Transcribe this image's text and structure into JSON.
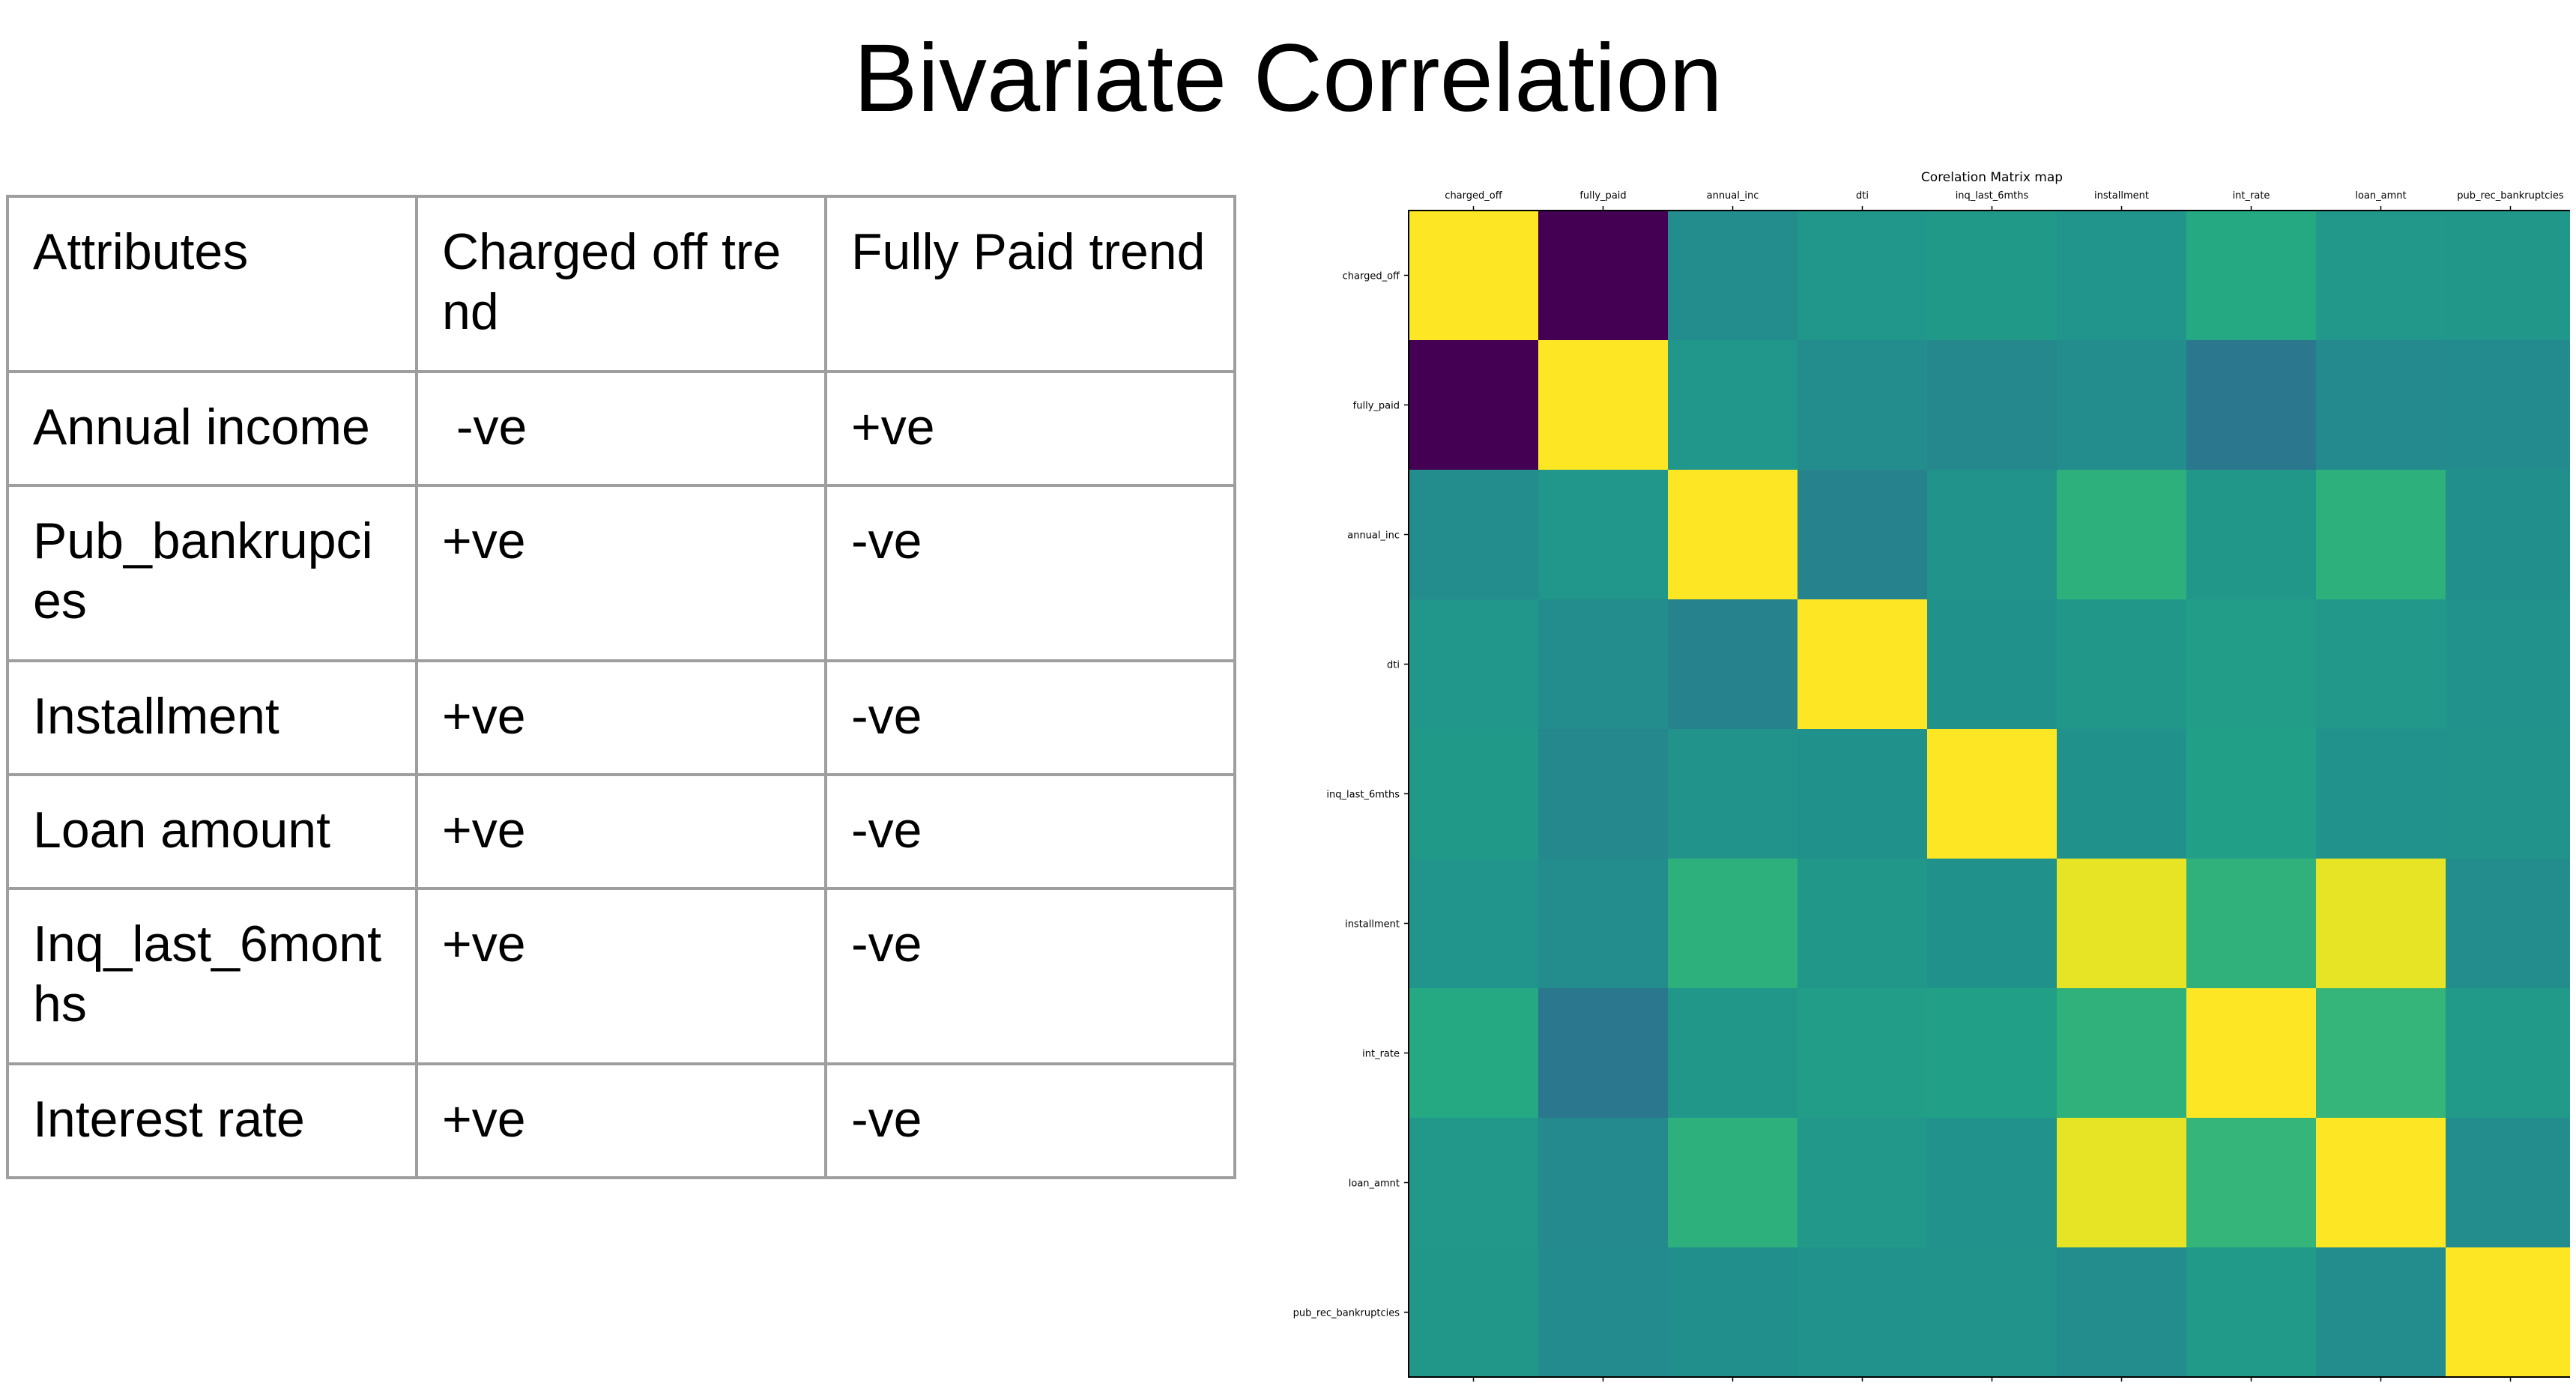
{
  "slide": {
    "title": "Bivariate Correlation"
  },
  "table": {
    "headers": [
      "Attributes",
      "Charged off trend",
      "Fully Paid trend"
    ],
    "rows": [
      [
        "Annual income",
        " -ve",
        "+ve"
      ],
      [
        "Pub_bankrupcies",
        "+ve",
        "-ve"
      ],
      [
        "Installment",
        "+ve",
        "-ve"
      ],
      [
        "Loan amount",
        "+ve",
        "-ve"
      ],
      [
        "Inq_last_6months",
        "+ve",
        "-ve"
      ],
      [
        "Interest rate",
        "+ve",
        "-ve"
      ]
    ]
  },
  "chart_data": {
    "type": "heatmap",
    "title": "Corelation Matrix map",
    "xlabel": "",
    "ylabel": "",
    "labels": [
      "charged_off",
      "fully_paid",
      "annual_inc",
      "dti",
      "inq_last_6mths",
      "installment",
      "int_rate",
      "loan_amnt",
      "pub_rec_bankruptcies"
    ],
    "values": [
      [
        1.0,
        -1.0,
        -0.04,
        0.04,
        0.07,
        0.03,
        0.21,
        0.06,
        0.05
      ],
      [
        -1.0,
        1.0,
        0.04,
        -0.04,
        -0.07,
        -0.03,
        -0.21,
        -0.06,
        -0.05
      ],
      [
        -0.04,
        0.04,
        1.0,
        -0.12,
        0.02,
        0.27,
        0.05,
        0.27,
        -0.01
      ],
      [
        0.04,
        -0.04,
        -0.12,
        1.0,
        0.0,
        0.05,
        0.11,
        0.06,
        0.01
      ],
      [
        0.07,
        -0.07,
        0.02,
        0.0,
        1.0,
        0.0,
        0.13,
        0.01,
        0.02
      ],
      [
        0.03,
        -0.03,
        0.27,
        0.05,
        0.0,
        0.93,
        0.28,
        0.93,
        -0.03
      ],
      [
        0.21,
        -0.21,
        0.05,
        0.11,
        0.13,
        0.28,
        1.0,
        0.31,
        0.08
      ],
      [
        0.06,
        -0.06,
        0.27,
        0.06,
        0.01,
        0.93,
        0.31,
        1.0,
        -0.03
      ],
      [
        0.05,
        -0.05,
        -0.01,
        0.01,
        0.02,
        -0.03,
        0.08,
        -0.03,
        1.0
      ]
    ],
    "vmin": -1.0,
    "vmax": 1.0,
    "colormap": "viridis",
    "x_ticks_position": "top",
    "grid": false,
    "colorbar": false
  }
}
